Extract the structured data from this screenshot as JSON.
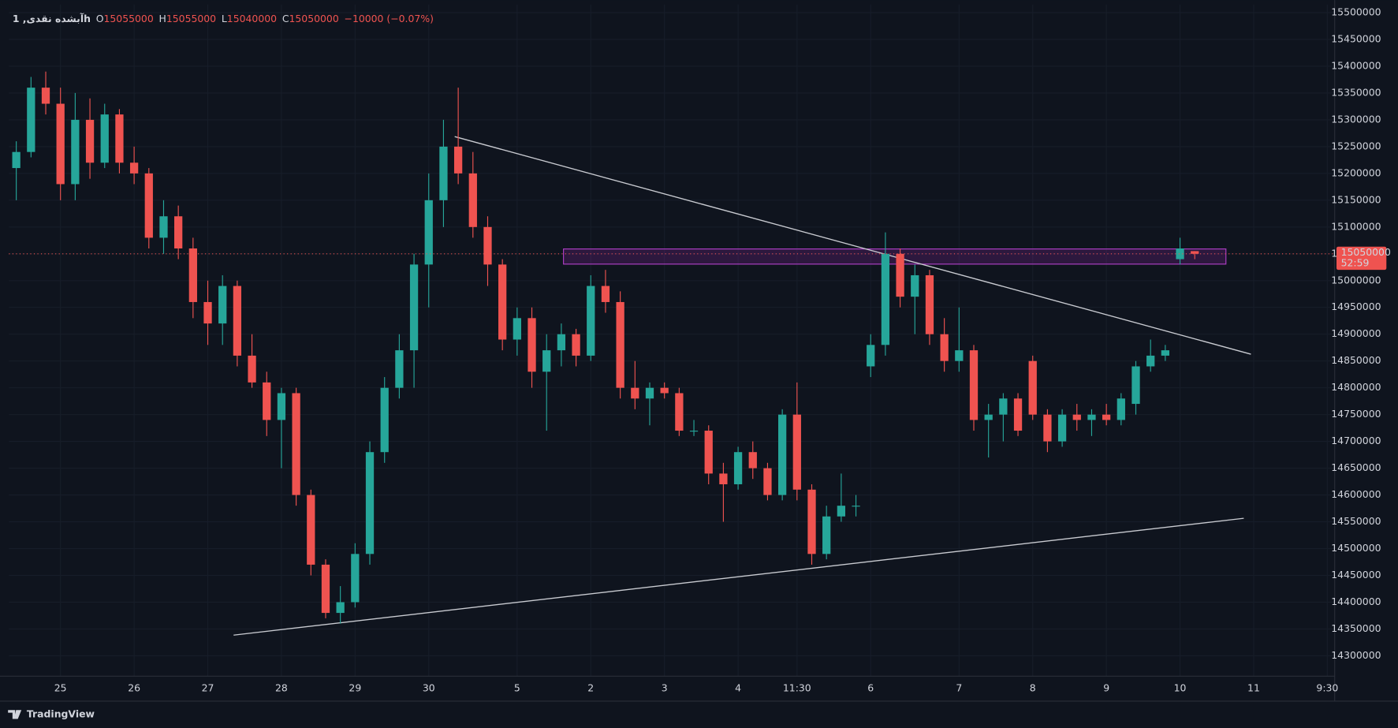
{
  "header": {
    "symbol": "آبشده نقدی, 1h",
    "ohlc": [
      {
        "label": "O",
        "value": "15055000"
      },
      {
        "label": "H",
        "value": "15055000"
      },
      {
        "label": "L",
        "value": "15040000"
      },
      {
        "label": "C",
        "value": "15050000"
      }
    ],
    "change": "−10000 (−0.07%)"
  },
  "footer": {
    "brand": "TradingView"
  },
  "chart_data": {
    "type": "candlestick",
    "up_color": "#26a69a",
    "down_color": "#ef5350",
    "current_price": 15050000,
    "countdown": "52:59",
    "ylim": [
      14262000,
      15515000
    ],
    "yticks": [
      15500000,
      15450000,
      15400000,
      15350000,
      15300000,
      15250000,
      15200000,
      15150000,
      15100000,
      15050000,
      15000000,
      14950000,
      14900000,
      14850000,
      14800000,
      14750000,
      14700000,
      14650000,
      14600000,
      14550000,
      14500000,
      14450000,
      14400000,
      14350000,
      14300000
    ],
    "grid": true,
    "categories": [
      null,
      null,
      null,
      "25",
      null,
      null,
      null,
      null,
      "26",
      null,
      null,
      null,
      null,
      "27",
      null,
      null,
      null,
      null,
      "28",
      null,
      null,
      null,
      null,
      "29",
      null,
      null,
      null,
      null,
      "30",
      null,
      null,
      null,
      null,
      null,
      "5",
      null,
      null,
      null,
      null,
      "2",
      null,
      null,
      null,
      null,
      "3",
      null,
      null,
      null,
      null,
      "4",
      null,
      null,
      null,
      "11:30",
      null,
      null,
      null,
      null,
      "6",
      null,
      null,
      null,
      null,
      null,
      "7",
      null,
      null,
      null,
      null,
      "8",
      null,
      null,
      null,
      null,
      "9",
      null,
      null,
      null,
      null,
      "10",
      null,
      null,
      null,
      null,
      "11",
      null,
      null,
      null,
      null,
      "9:30"
    ],
    "open": [
      15210000,
      15240000,
      15360000,
      15330000,
      15180000,
      15300000,
      15220000,
      15310000,
      15220000,
      15200000,
      15080000,
      15120000,
      15060000,
      14960000,
      14920000,
      14990000,
      14860000,
      14810000,
      14740000,
      14790000,
      14600000,
      14470000,
      14380000,
      14400000,
      14490000,
      14680000,
      14800000,
      14870000,
      15030000,
      15150000,
      15250000,
      15200000,
      15100000,
      15030000,
      14890000,
      14930000,
      14830000,
      14870000,
      14900000,
      14860000,
      14990000,
      14960000,
      14800000,
      14780000,
      14800000,
      14790000,
      14720000,
      14720000,
      14640000,
      14620000,
      14680000,
      14650000,
      14600000,
      14750000,
      14610000,
      14490000,
      14560000,
      14580000,
      14840000,
      14880000,
      15050000,
      14970000,
      15010000,
      14900000,
      14850000,
      14870000,
      14740000,
      14750000,
      14780000,
      14850000,
      14750000,
      14700000,
      14750000,
      14740000,
      14750000,
      14740000,
      14770000,
      14840000,
      14860000,
      15040000,
      15055000,
      null,
      null,
      null,
      null,
      null,
      null,
      null,
      null,
      null
    ],
    "high": [
      15260000,
      15380000,
      15390000,
      15360000,
      15350000,
      15340000,
      15330000,
      15320000,
      15250000,
      15210000,
      15150000,
      15140000,
      15080000,
      15000000,
      15010000,
      15000000,
      14900000,
      14830000,
      14800000,
      14800000,
      14610000,
      14480000,
      14430000,
      14510000,
      14700000,
      14820000,
      14900000,
      15050000,
      15200000,
      15300000,
      15360000,
      15240000,
      15120000,
      15040000,
      14950000,
      14950000,
      14900000,
      14920000,
      14910000,
      15010000,
      15020000,
      14980000,
      14850000,
      14810000,
      14810000,
      14800000,
      14740000,
      14730000,
      14660000,
      14690000,
      14700000,
      14660000,
      14760000,
      14810000,
      14620000,
      14580000,
      14640000,
      14600000,
      14900000,
      15090000,
      15060000,
      15030000,
      15020000,
      14930000,
      14950000,
      14880000,
      14770000,
      14790000,
      14790000,
      14860000,
      14760000,
      14760000,
      14770000,
      14760000,
      14770000,
      14790000,
      14850000,
      14890000,
      14880000,
      15080000,
      15055000,
      null,
      null,
      null,
      null,
      null,
      null,
      null,
      null,
      null
    ],
    "low": [
      15150000,
      15230000,
      15310000,
      15150000,
      15150000,
      15190000,
      15210000,
      15200000,
      15180000,
      15060000,
      15050000,
      15040000,
      14930000,
      14880000,
      14880000,
      14840000,
      14800000,
      14710000,
      14650000,
      14580000,
      14450000,
      14370000,
      14360000,
      14390000,
      14470000,
      14660000,
      14780000,
      14800000,
      14950000,
      15100000,
      15180000,
      15080000,
      14990000,
      14870000,
      14860000,
      14800000,
      14720000,
      14840000,
      14840000,
      14850000,
      14940000,
      14780000,
      14760000,
      14730000,
      14780000,
      14710000,
      14710000,
      14620000,
      14550000,
      14610000,
      14630000,
      14590000,
      14590000,
      14590000,
      14470000,
      14480000,
      14550000,
      14560000,
      14820000,
      14860000,
      14950000,
      14900000,
      14880000,
      14830000,
      14830000,
      14720000,
      14670000,
      14700000,
      14710000,
      14740000,
      14680000,
      14690000,
      14720000,
      14710000,
      14730000,
      14730000,
      14750000,
      14830000,
      14850000,
      15030000,
      15040000,
      null,
      null,
      null,
      null,
      null,
      null,
      null,
      null,
      null
    ],
    "close": [
      15240000,
      15360000,
      15330000,
      15180000,
      15300000,
      15220000,
      15310000,
      15220000,
      15200000,
      15080000,
      15120000,
      15060000,
      14960000,
      14920000,
      14990000,
      14860000,
      14810000,
      14740000,
      14790000,
      14600000,
      14470000,
      14380000,
      14400000,
      14490000,
      14680000,
      14800000,
      14870000,
      15030000,
      15150000,
      15250000,
      15200000,
      15100000,
      15030000,
      14890000,
      14930000,
      14830000,
      14870000,
      14900000,
      14860000,
      14990000,
      14960000,
      14800000,
      14780000,
      14800000,
      14790000,
      14720000,
      14720000,
      14640000,
      14620000,
      14680000,
      14650000,
      14600000,
      14750000,
      14610000,
      14490000,
      14560000,
      14580000,
      14580000,
      14880000,
      15050000,
      14970000,
      15010000,
      14900000,
      14850000,
      14870000,
      14740000,
      14750000,
      14780000,
      14720000,
      14750000,
      14700000,
      14750000,
      14740000,
      14750000,
      14740000,
      14780000,
      14840000,
      14860000,
      14870000,
      15060000,
      15050000,
      null,
      null,
      null,
      null,
      null,
      null,
      null,
      null,
      null
    ]
  }
}
